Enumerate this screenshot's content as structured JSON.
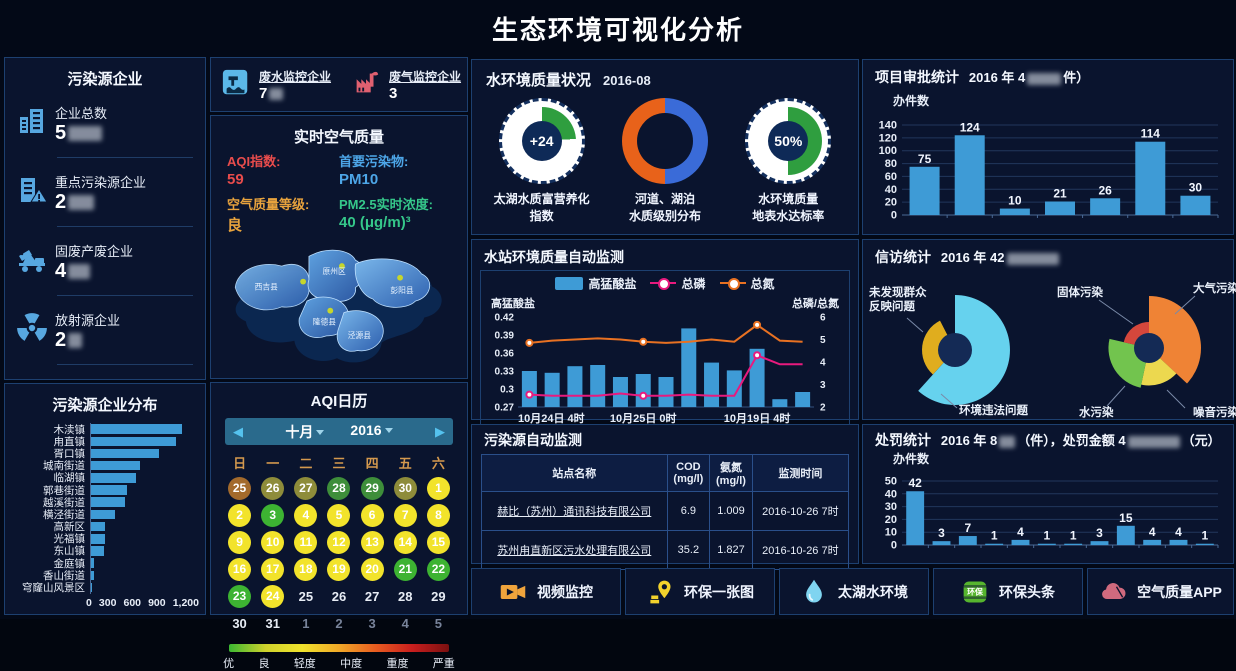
{
  "page_title": "生态环境可视化分析",
  "colors": {
    "bar_blue": "#3e9bd6",
    "line_pink": "#e81a7e",
    "line_orange": "#e87122",
    "gauge_green": "#2f9e3f",
    "donut_blue": "#3a6bd8",
    "donut_orange": "#e8621a",
    "grid_line": "#22365c",
    "axis_text": "#e8eef8"
  },
  "left_panel": {
    "title": "污染源企业",
    "stats": [
      {
        "icon": "building-icon",
        "label": "企业总数",
        "value_prefix": "5",
        "blurred": true
      },
      {
        "icon": "building-alert-icon",
        "label": "重点污染源企业",
        "value_prefix": "2",
        "blurred": true
      },
      {
        "icon": "waste-truck-icon",
        "label": "固废产废企业",
        "value_prefix": "4",
        "blurred": true
      },
      {
        "icon": "radiation-icon",
        "label": "放射源企业",
        "value_prefix": "2",
        "blurred": true
      }
    ]
  },
  "monitor_counts": {
    "items": [
      {
        "icon": "wastewater-icon",
        "label": "废水监控企业",
        "value_prefix": "7",
        "blurred": true
      },
      {
        "icon": "exhaust-icon",
        "label": "废气监控企业",
        "value_prefix": "3",
        "blurred": false
      }
    ]
  },
  "air_quality": {
    "title": "实时空气质量",
    "items": [
      {
        "label": "AQI指数:",
        "value": "59",
        "color_class": "c-red"
      },
      {
        "label": "首要污染物:",
        "value": "PM10",
        "color_class": "c-blue"
      },
      {
        "label": "空气质量等级:",
        "value": "良",
        "color_class": "c-orange"
      },
      {
        "label": "PM2.5实时浓度:",
        "value": "40 (μg/m)³",
        "color_class": "c-green"
      }
    ],
    "map_regions": [
      "西吉县",
      "原州区",
      "彭阳县",
      "隆德县",
      "泾源县"
    ]
  },
  "aqi_calendar": {
    "title": "AQI日历",
    "month": "十月",
    "year": "2016",
    "day_headers": [
      "日",
      "一",
      "二",
      "三",
      "四",
      "五",
      "六"
    ],
    "weeks": [
      [
        {
          "d": "25",
          "t": "brown"
        },
        {
          "d": "26",
          "t": "olive"
        },
        {
          "d": "27",
          "t": "olive"
        },
        {
          "d": "28",
          "t": "dgreen"
        },
        {
          "d": "29",
          "t": "dgreen"
        },
        {
          "d": "30",
          "t": "olive"
        },
        {
          "d": "1",
          "t": "yellow"
        }
      ],
      [
        {
          "d": "2",
          "t": "yellow"
        },
        {
          "d": "3",
          "t": "green"
        },
        {
          "d": "4",
          "t": "yellow"
        },
        {
          "d": "5",
          "t": "yellow"
        },
        {
          "d": "6",
          "t": "yellow"
        },
        {
          "d": "7",
          "t": "yellow"
        },
        {
          "d": "8",
          "t": "yellow"
        }
      ],
      [
        {
          "d": "9",
          "t": "yellow"
        },
        {
          "d": "10",
          "t": "yellow"
        },
        {
          "d": "11",
          "t": "yellow"
        },
        {
          "d": "12",
          "t": "yellow"
        },
        {
          "d": "13",
          "t": "yellow"
        },
        {
          "d": "14",
          "t": "yellow"
        },
        {
          "d": "15",
          "t": "yellow"
        }
      ],
      [
        {
          "d": "16",
          "t": "yellow"
        },
        {
          "d": "17",
          "t": "yellow"
        },
        {
          "d": "18",
          "t": "yellow"
        },
        {
          "d": "19",
          "t": "yellow"
        },
        {
          "d": "20",
          "t": "yellow"
        },
        {
          "d": "21",
          "t": "green"
        },
        {
          "d": "22",
          "t": "green"
        }
      ],
      [
        {
          "d": "23",
          "t": "green"
        },
        {
          "d": "24",
          "t": "yellow"
        },
        {
          "d": "25",
          "t": "plain"
        },
        {
          "d": "26",
          "t": "plain"
        },
        {
          "d": "27",
          "t": "plain"
        },
        {
          "d": "28",
          "t": "plain"
        },
        {
          "d": "29",
          "t": "plain"
        }
      ],
      [
        {
          "d": "30",
          "t": "plain"
        },
        {
          "d": "31",
          "t": "plain"
        },
        {
          "d": "1",
          "t": "dim"
        },
        {
          "d": "2",
          "t": "dim"
        },
        {
          "d": "3",
          "t": "dim"
        },
        {
          "d": "4",
          "t": "dim"
        },
        {
          "d": "5",
          "t": "dim"
        }
      ]
    ],
    "legend_labels": [
      "优",
      "良",
      "轻度",
      "中度",
      "重度",
      "严重"
    ]
  },
  "water_quality": {
    "title": "水环境质量状况",
    "date": "2016-08",
    "gauges": [
      {
        "kind": "tick",
        "value_text": "+24",
        "percent": 24,
        "label1": "太湖水质富营养化",
        "label2": "指数"
      },
      {
        "kind": "donut",
        "label1": "河道、湖泊",
        "label2": "水质级别分布"
      },
      {
        "kind": "tick",
        "value_text": "50%",
        "percent": 50,
        "label1": "水环境质量",
        "label2": "地表水达标率"
      }
    ]
  },
  "station_panel": {
    "title": "水站环境质量自动监测",
    "legend": [
      "高猛酸盐",
      "总磷",
      "总氮"
    ],
    "axis_left_label": "高猛酸盐",
    "axis_right_label": "总磷/总氮"
  },
  "pollution_table": {
    "title": "污染源自动监测",
    "columns": [
      {
        "l1": "站点名称",
        "l2": ""
      },
      {
        "l1": "COD",
        "l2": "(mg/l)"
      },
      {
        "l1": "氨氮",
        "l2": "(mg/l)"
      },
      {
        "l1": "监测时间",
        "l2": ""
      }
    ],
    "rows": [
      [
        "赫比（苏州）通讯科技有限公司",
        "6.9",
        "1.009",
        "2016-10-26 7时"
      ],
      [
        "苏州甪直新区污水处理有限公司",
        "35.2",
        "1.827",
        "2016-10-26 7时"
      ]
    ]
  },
  "approval_panel": {
    "title": "项目审批统计",
    "sub1": "2016 年 4",
    "sub2": "件）",
    "ylabel": "办件数"
  },
  "petition_panel": {
    "title": "信访统计",
    "sub1": "2016 年 42"
  },
  "penalty_panel": {
    "title": "处罚统计",
    "sub1": "2016 年 8",
    "sub2": "（件），处罚金额 4",
    "sub3": "（元）",
    "ylabel": "办件数"
  },
  "bottom_buttons": [
    {
      "id": "video",
      "label": "视频监控"
    },
    {
      "id": "map",
      "label": "环保一张图"
    },
    {
      "id": "water",
      "label": "太湖水环境"
    },
    {
      "id": "headline",
      "label": "环保头条",
      "icon_text": "环保"
    },
    {
      "id": "air-app",
      "label": "空气质量APP"
    }
  ],
  "chart_data": [
    {
      "id": "distribution",
      "type": "bar",
      "orientation": "horizontal",
      "title": "污染源企业分布",
      "categories": [
        "木渎镇",
        "甪直镇",
        "胥口镇",
        "城南街道",
        "临湖镇",
        "郭巷街道",
        "越溪街道",
        "横泾街道",
        "高新区",
        "光福镇",
        "东山镇",
        "金庭镇",
        "香山街道",
        "穹窿山风景区"
      ],
      "values": [
        1050,
        980,
        790,
        570,
        520,
        410,
        395,
        280,
        165,
        160,
        155,
        40,
        35,
        10
      ],
      "xlim": [
        0,
        1200
      ],
      "xticks": [
        "0",
        "300",
        "600",
        "900",
        "1,200"
      ]
    },
    {
      "id": "station",
      "type": "bar+line",
      "title": "水站环境质量自动监测",
      "bar_series": {
        "name": "高猛酸盐",
        "color": "#3e9bd6",
        "values": [
          0.33,
          0.327,
          0.338,
          0.34,
          0.32,
          0.325,
          0.32,
          0.401,
          0.344,
          0.331,
          0.367,
          0.283,
          0.295
        ]
      },
      "line_series": [
        {
          "name": "总磷",
          "color": "#e81a7e",
          "axis": "right",
          "values": [
            2.55,
            2.5,
            2.5,
            2.5,
            2.6,
            2.5,
            2.5,
            2.55,
            2.5,
            2.5,
            4.3,
            3.9,
            3.9
          ]
        },
        {
          "name": "总氮",
          "color": "#e87122",
          "axis": "right",
          "values": [
            4.85,
            4.95,
            5.0,
            5.05,
            5.0,
            4.9,
            4.85,
            4.9,
            5.0,
            4.9,
            5.65,
            4.95,
            4.9
          ]
        }
      ],
      "y_left": {
        "label": "高猛酸盐",
        "min": 0.27,
        "max": 0.42,
        "ticks": [
          "0.27",
          "0.3",
          "0.33",
          "0.36",
          "0.39",
          "0.42"
        ]
      },
      "y_right": {
        "label": "总磷/总氮",
        "min": 2,
        "max": 6,
        "ticks": [
          "2",
          "3",
          "4",
          "5",
          "6"
        ]
      },
      "x_labels": [
        {
          "index": 0,
          "text": "10月24日 4时"
        },
        {
          "index": 5,
          "text": "10月25日 0时"
        },
        {
          "index": 10,
          "text": "10月19日 4时"
        }
      ],
      "marker_indices": [
        0,
        5,
        10
      ]
    },
    {
      "id": "approval",
      "type": "bar",
      "title": "项目审批统计",
      "values": [
        75,
        124,
        10,
        21,
        26,
        114,
        30
      ],
      "ylabel": "办件数",
      "ylim": [
        0,
        140
      ],
      "yticks": [
        0,
        20,
        40,
        60,
        80,
        100,
        120,
        140
      ]
    },
    {
      "id": "penalty",
      "type": "bar",
      "title": "处罚统计",
      "values": [
        42,
        3,
        7,
        1,
        4,
        1,
        1,
        3,
        15,
        4,
        4,
        1
      ],
      "ylabel": "办件数",
      "ylim": [
        0,
        50
      ],
      "yticks": [
        0,
        10,
        20,
        30,
        40,
        50
      ]
    },
    {
      "id": "petition-left",
      "type": "pie",
      "style": "rose",
      "slices": [
        {
          "label": "环境违法问题",
          "color": "#66d2ee",
          "start_deg": 0,
          "end_deg": 222,
          "radius_ratio": 1.0
        },
        {
          "label": "未发现群众反映问题",
          "color": "#e0ad1e",
          "start_deg": 222,
          "end_deg": 333,
          "radius_ratio": 0.6
        }
      ]
    },
    {
      "id": "petition-right",
      "type": "pie",
      "style": "rose",
      "slices": [
        {
          "label": "大气污染",
          "color": "#ef8335",
          "start_deg": 0,
          "end_deg": 133,
          "radius_ratio": 1.0
        },
        {
          "label": "噪音污染",
          "color": "#ecd84f",
          "start_deg": 133,
          "end_deg": 192,
          "radius_ratio": 0.72
        },
        {
          "label": "水污染",
          "color": "#72c44e",
          "start_deg": 192,
          "end_deg": 283,
          "radius_ratio": 0.78
        },
        {
          "label": "固体污染",
          "color": "#d5473c",
          "start_deg": 283,
          "end_deg": 360,
          "radius_ratio": 0.5
        }
      ]
    }
  ]
}
